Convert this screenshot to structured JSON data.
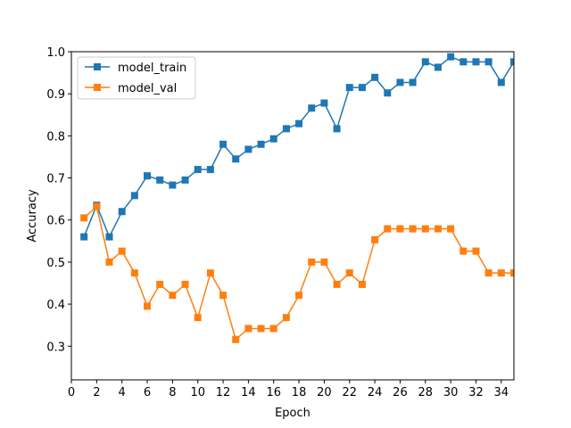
{
  "chart_data": {
    "type": "line",
    "title": "",
    "xlabel": "Epoch",
    "ylabel": "Accuracy",
    "xlim": [
      0,
      35
    ],
    "ylim": [
      0.22,
      1.0
    ],
    "xticks": [
      0,
      2,
      4,
      6,
      8,
      10,
      12,
      14,
      16,
      18,
      20,
      22,
      24,
      26,
      28,
      30,
      32,
      34
    ],
    "yticks": [
      0.3,
      0.4,
      0.5,
      0.6,
      0.7,
      0.8,
      0.9,
      1.0
    ],
    "ytick_labels": [
      "0.3",
      "0.4",
      "0.5",
      "0.6",
      "0.7",
      "0.8",
      "0.9",
      "1.0"
    ],
    "grid": false,
    "legend_position": "top-left",
    "x": [
      1,
      2,
      3,
      4,
      5,
      6,
      7,
      8,
      9,
      10,
      11,
      12,
      13,
      14,
      15,
      16,
      17,
      18,
      19,
      20,
      21,
      22,
      23,
      24,
      25,
      26,
      27,
      28,
      29,
      30,
      31,
      32,
      33,
      34,
      35
    ],
    "series": [
      {
        "name": "model_train",
        "color": "#1f77b4",
        "marker": "square",
        "values": [
          0.56,
          0.635,
          0.56,
          0.62,
          0.658,
          0.705,
          0.695,
          0.683,
          0.695,
          0.72,
          0.72,
          0.78,
          0.745,
          0.768,
          0.78,
          0.793,
          0.817,
          0.829,
          0.866,
          0.878,
          0.817,
          0.915,
          0.915,
          0.939,
          0.902,
          0.927,
          0.927,
          0.976,
          0.963,
          0.988,
          0.976,
          0.976,
          0.976,
          0.927,
          0.976
        ]
      },
      {
        "name": "model_val",
        "color": "#ff7f0e",
        "marker": "square",
        "values": [
          0.605,
          0.632,
          0.5,
          0.526,
          0.474,
          0.395,
          0.447,
          0.421,
          0.447,
          0.368,
          0.474,
          0.421,
          0.316,
          0.342,
          0.342,
          0.342,
          0.368,
          0.421,
          0.5,
          0.5,
          0.447,
          0.474,
          0.447,
          0.553,
          0.579,
          0.579,
          0.579,
          0.579,
          0.579,
          0.579,
          0.526,
          0.526,
          0.474,
          0.474,
          0.474
        ]
      }
    ]
  }
}
